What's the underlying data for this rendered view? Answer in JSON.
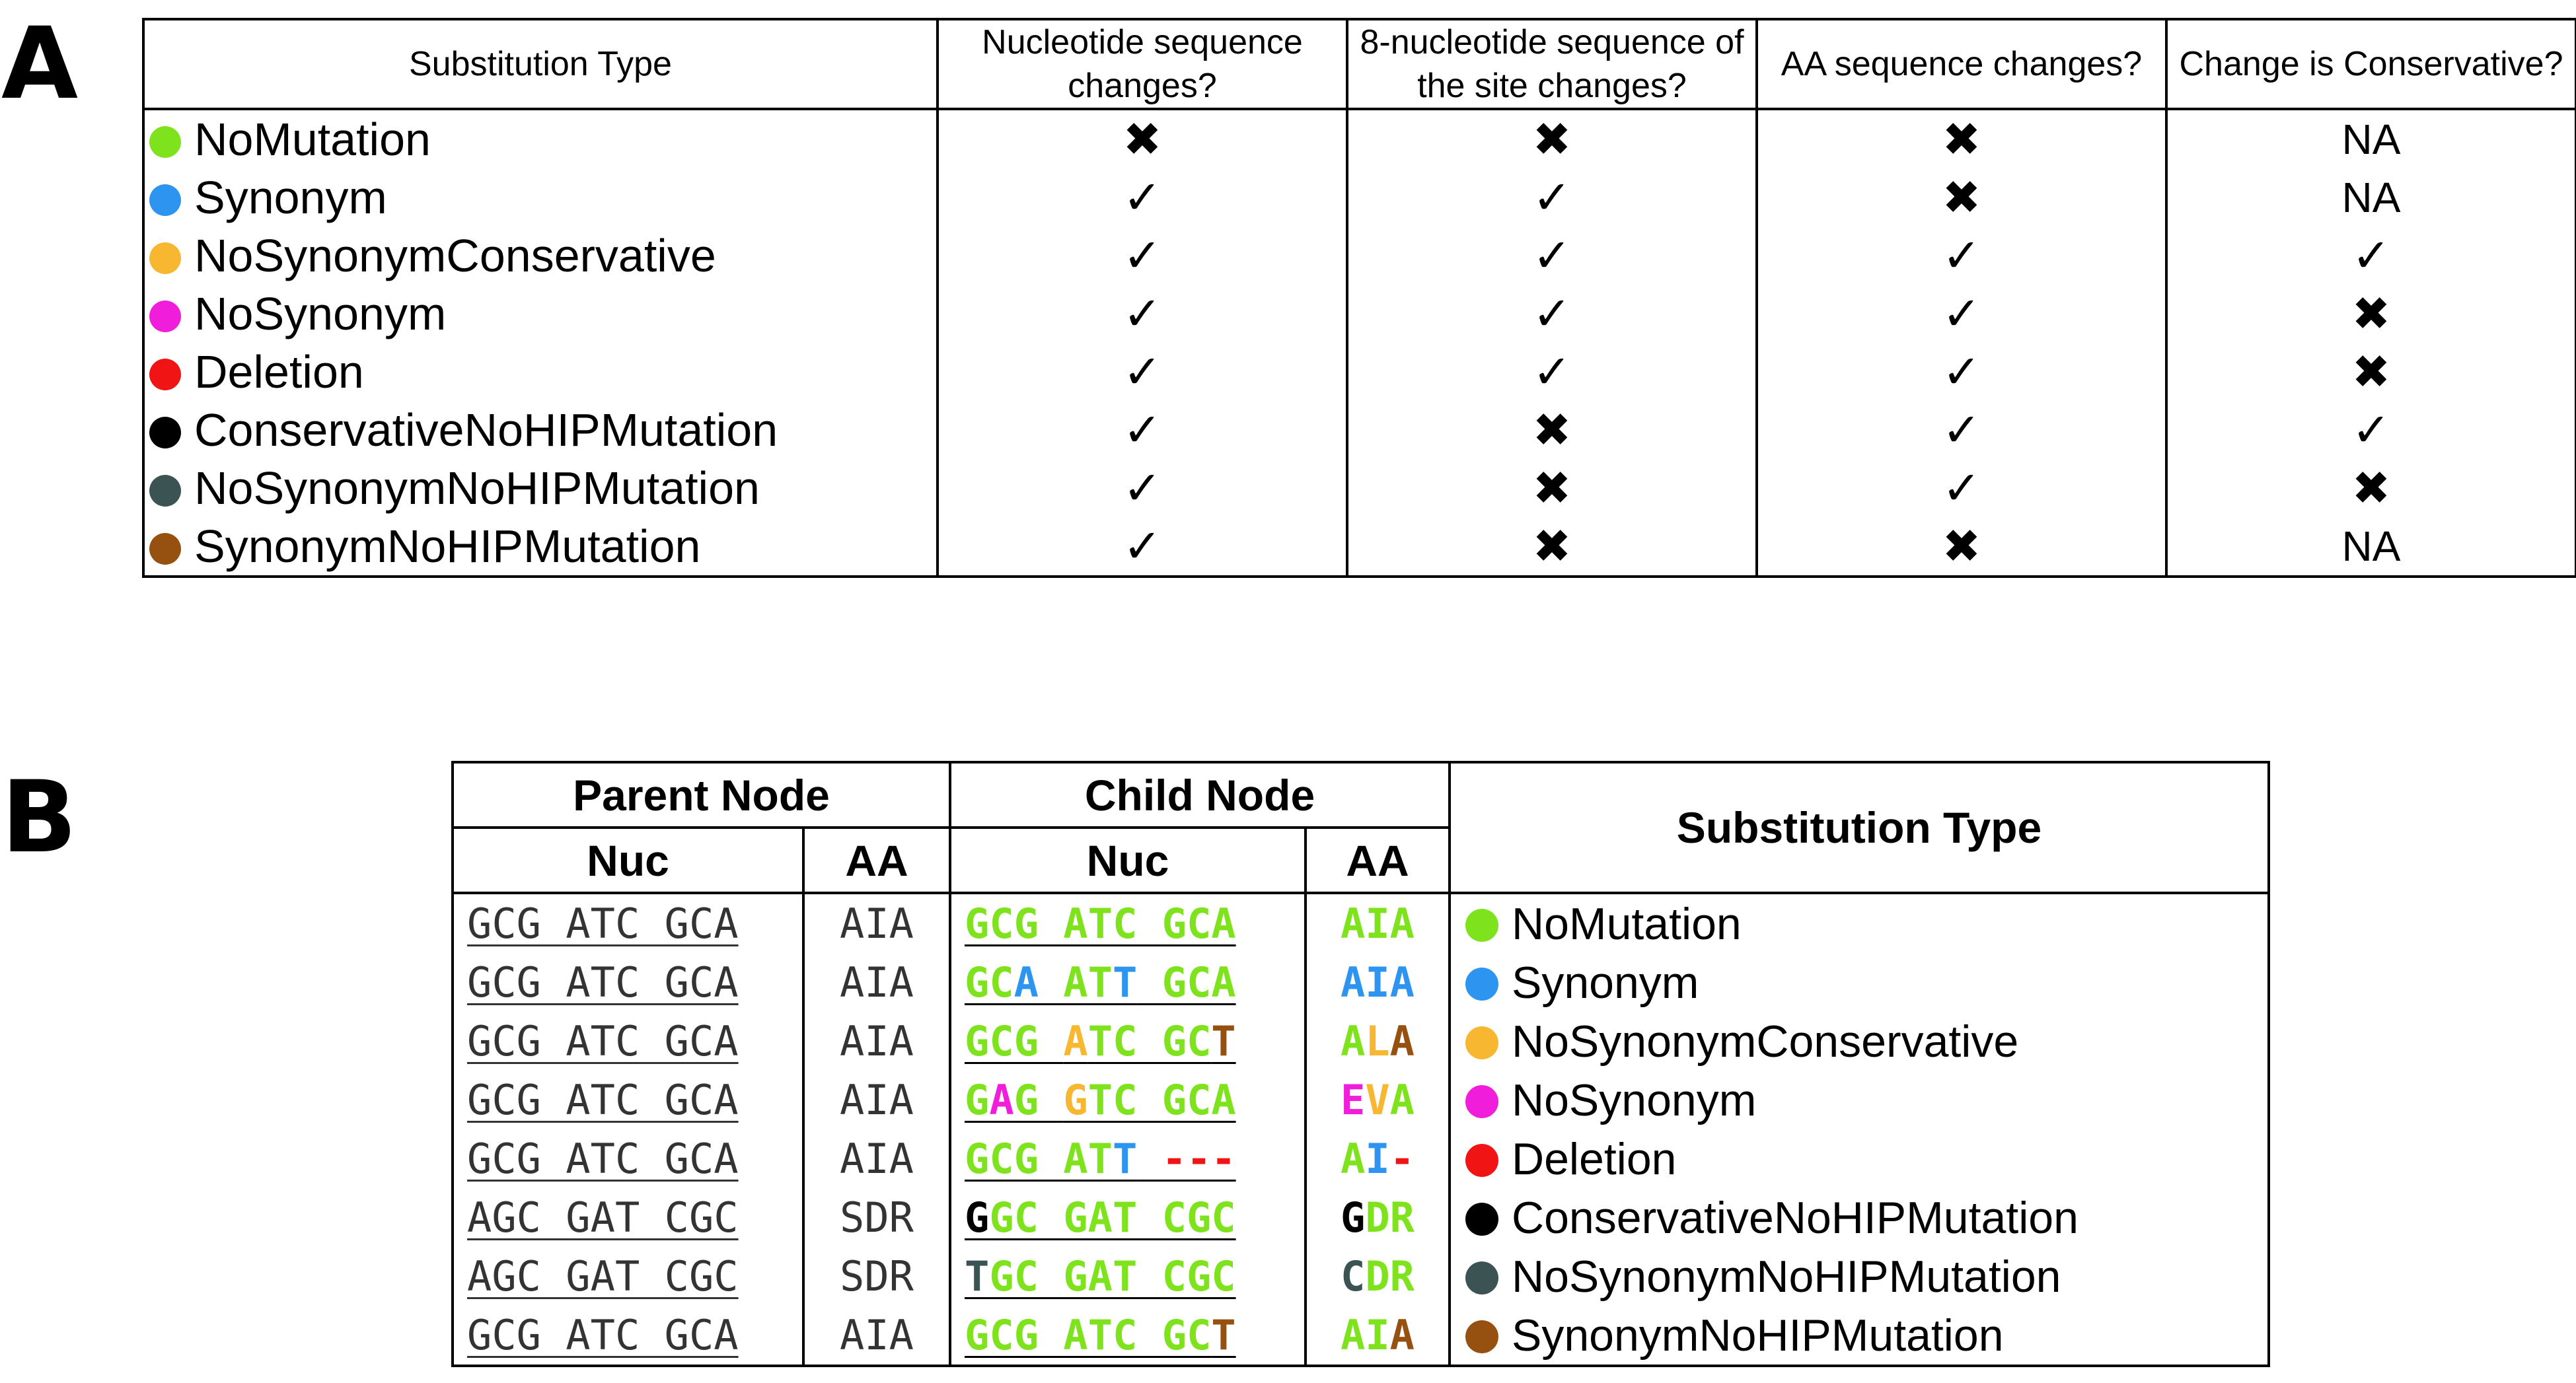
{
  "panel_a": {
    "label": "A",
    "headers": [
      "Substitution Type",
      "Nucleotide sequence changes?",
      "8-nucleotide sequence of the site changes?",
      "AA sequence changes?",
      "Change is Conservative?"
    ],
    "rows": [
      {
        "type": "NoMutation",
        "color": "#7ee31c",
        "cells": [
          "✖",
          "✖",
          "✖",
          "NA"
        ]
      },
      {
        "type": "Synonym",
        "color": "#2d94f0",
        "cells": [
          "✓",
          "✓",
          "✖",
          "NA"
        ]
      },
      {
        "type": "NoSynonymConservative",
        "color": "#f7b731",
        "cells": [
          "✓",
          "✓",
          "✓",
          "✓"
        ]
      },
      {
        "type": "NoSynonym",
        "color": "#f01ddb",
        "cells": [
          "✓",
          "✓",
          "✓",
          "✖"
        ]
      },
      {
        "type": "Deletion",
        "color": "#f01414",
        "cells": [
          "✓",
          "✓",
          "✓",
          "✖"
        ]
      },
      {
        "type": "ConservativeNoHIPMutation",
        "color": "#000000",
        "cells": [
          "✓",
          "✖",
          "✓",
          "✓"
        ]
      },
      {
        "type": "NoSynonymNoHIPMutation",
        "color": "#3b5353",
        "cells": [
          "✓",
          "✖",
          "✓",
          "✖"
        ]
      },
      {
        "type": "SynonymNoHIPMutation",
        "color": "#96500f",
        "cells": [
          "✓",
          "✖",
          "✖",
          "NA"
        ]
      }
    ]
  },
  "panel_b": {
    "label": "B",
    "headers": {
      "parent": "Parent Node",
      "child": "Child Node",
      "nuc": "Nuc",
      "aa": "AA",
      "subtype": "Substitution Type"
    },
    "colors": {
      "green": "#7ee31c",
      "blue": "#2d94f0",
      "orange": "#f7b731",
      "magenta": "#f01ddb",
      "red": "#f01414",
      "black": "#000000",
      "slate": "#3b5353",
      "brown": "#96500f"
    },
    "rows": [
      {
        "parent_nuc": "GCG ATC GCA",
        "parent_aa": "AIA",
        "child_nuc": [
          [
            "GCG ATC GCA",
            "green"
          ]
        ],
        "child_aa": [
          [
            "AIA",
            "green"
          ]
        ],
        "type": "NoMutation",
        "type_color": "#7ee31c"
      },
      {
        "parent_nuc": "GCG ATC GCA",
        "parent_aa": "AIA",
        "child_nuc": [
          [
            "GC",
            "green"
          ],
          [
            "A",
            "blue"
          ],
          [
            " AT",
            "green"
          ],
          [
            "T",
            "blue"
          ],
          [
            " GCA",
            "green"
          ]
        ],
        "child_aa": [
          [
            "AIA",
            "blue"
          ]
        ],
        "type": "Synonym",
        "type_color": "#2d94f0"
      },
      {
        "parent_nuc": "GCG ATC GCA",
        "parent_aa": "AIA",
        "child_nuc": [
          [
            "GCG ",
            "green"
          ],
          [
            "A",
            "orange"
          ],
          [
            "TC GC",
            "green"
          ],
          [
            "T",
            "brown"
          ]
        ],
        "child_aa": [
          [
            "A",
            "green"
          ],
          [
            "L",
            "orange"
          ],
          [
            "A",
            "brown"
          ]
        ],
        "type": "NoSynonymConservative",
        "type_color": "#f7b731"
      },
      {
        "parent_nuc": "GCG ATC GCA",
        "parent_aa": "AIA",
        "child_nuc": [
          [
            "G",
            "green"
          ],
          [
            "A",
            "magenta"
          ],
          [
            "G ",
            "green"
          ],
          [
            "G",
            "orange"
          ],
          [
            "TC GCA",
            "green"
          ]
        ],
        "child_aa": [
          [
            "E",
            "magenta"
          ],
          [
            "V",
            "orange"
          ],
          [
            "A",
            "green"
          ]
        ],
        "type": "NoSynonym",
        "type_color": "#f01ddb"
      },
      {
        "parent_nuc": "GCG ATC GCA",
        "parent_aa": "AIA",
        "child_nuc": [
          [
            "GCG AT",
            "green"
          ],
          [
            "T",
            "blue"
          ],
          [
            " ---",
            "red"
          ]
        ],
        "child_aa": [
          [
            "A",
            "green"
          ],
          [
            "I",
            "blue"
          ],
          [
            "-",
            "red"
          ]
        ],
        "type": "Deletion",
        "type_color": "#f01414"
      },
      {
        "parent_nuc": "AGC GAT CGC",
        "parent_aa": "SDR",
        "child_nuc": [
          [
            "G",
            "black"
          ],
          [
            "GC GAT CGC",
            "green"
          ]
        ],
        "child_aa": [
          [
            "G",
            "black"
          ],
          [
            "DR",
            "green"
          ]
        ],
        "type": "ConservativeNoHIPMutation",
        "type_color": "#000000"
      },
      {
        "parent_nuc": "AGC GAT CGC",
        "parent_aa": "SDR",
        "child_nuc": [
          [
            "T",
            "slate"
          ],
          [
            "GC GAT CGC",
            "green"
          ]
        ],
        "child_aa": [
          [
            "C",
            "slate"
          ],
          [
            "DR",
            "green"
          ]
        ],
        "type": "NoSynonymNoHIPMutation",
        "type_color": "#3b5353"
      },
      {
        "parent_nuc": "GCG ATC GCA",
        "parent_aa": "AIA",
        "child_nuc": [
          [
            "GCG ATC GC",
            "green"
          ],
          [
            "T",
            "brown"
          ]
        ],
        "child_aa": [
          [
            "AI",
            "green"
          ],
          [
            "A",
            "brown"
          ]
        ],
        "type": "SynonymNoHIPMutation",
        "type_color": "#96500f"
      }
    ]
  }
}
